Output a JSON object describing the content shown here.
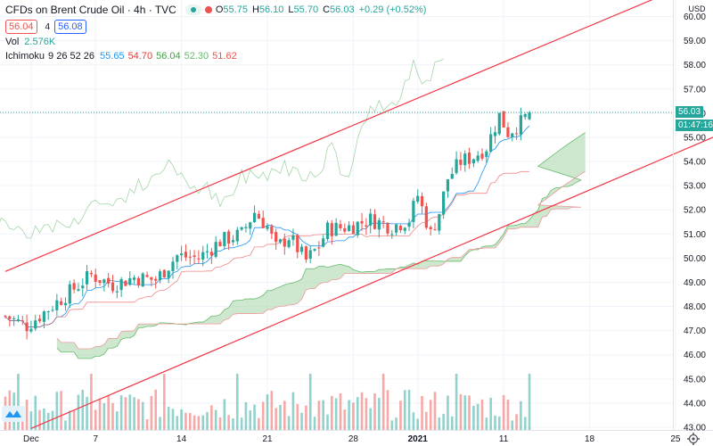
{
  "header": {
    "title": "CFDs on Brent Crude Oil · 4h · TVC",
    "open_label": "O",
    "open": "55.75",
    "high_label": "H",
    "high": "56.10",
    "low_label": "L",
    "low": "55.70",
    "close_label": "C",
    "close": "56.03",
    "change": "+0.29 (+0.52%)",
    "sell": "56.04",
    "spread": "4",
    "buy": "56.08",
    "vol_label": "Vol",
    "vol_value": "2.576K",
    "ichi_label": "Ichimoku",
    "ichi_params": "9 26 52 26",
    "ichi_values": [
      "55.65",
      "54.70",
      "56.04",
      "52.30",
      "51.62"
    ]
  },
  "axis": {
    "currency": "USD",
    "last_price_label": "56.03",
    "countdown": "01:47:16"
  },
  "colors": {
    "up": "#26a69a",
    "down": "#ef5350",
    "channel": "#f23645",
    "conversion": "#2196f3",
    "base": "#e53935",
    "lagging": "#66bb6a",
    "cloud_bull": "#a5d6a7",
    "cloud_bear": "#ef9a9a",
    "ichi_colors": [
      "#2196f3",
      "#e53935",
      "#43a047",
      "#66bb6a",
      "#ef5350"
    ]
  },
  "chart_data": {
    "type": "candlestick",
    "title": "CFDs on Brent Crude Oil · 4h · TVC",
    "ylabel": "USD",
    "ylim": [
      42.9,
      60.4
    ],
    "y_ticks": [
      "43.00",
      "44.00",
      "45.00",
      "46.00",
      "47.00",
      "48.00",
      "49.00",
      "50.00",
      "51.00",
      "52.00",
      "53.00",
      "54.00",
      "55.00",
      "56.00",
      "57.00",
      "58.00",
      "59.00",
      "60.00"
    ],
    "x_ticks": [
      {
        "label": "Dec",
        "bar": 6
      },
      {
        "label": "7",
        "bar": 21
      },
      {
        "label": "14",
        "bar": 41
      },
      {
        "label": "21",
        "bar": 61
      },
      {
        "label": "28",
        "bar": 81
      },
      {
        "label": "2021",
        "bar": 96
      },
      {
        "label": "11",
        "bar": 116
      },
      {
        "label": "18",
        "bar": 136
      },
      {
        "label": "25",
        "bar": 156
      }
    ],
    "bars_total": 170,
    "close_anchors": [
      [
        0,
        47.6
      ],
      [
        5,
        47.2
      ],
      [
        10,
        47.9
      ],
      [
        15,
        48.6
      ],
      [
        20,
        49.3
      ],
      [
        25,
        48.9
      ],
      [
        30,
        49.2
      ],
      [
        35,
        49.1
      ],
      [
        40,
        50.1
      ],
      [
        45,
        50.0
      ],
      [
        50,
        50.7
      ],
      [
        55,
        51.0
      ],
      [
        58,
        51.9
      ],
      [
        61,
        51.3
      ],
      [
        63,
        50.4
      ],
      [
        66,
        50.9
      ],
      [
        70,
        49.9
      ],
      [
        73,
        50.5
      ],
      [
        75,
        51.2
      ],
      [
        80,
        51.3
      ],
      [
        85,
        51.6
      ],
      [
        90,
        51.3
      ],
      [
        94,
        51.6
      ],
      [
        96,
        52.6
      ],
      [
        99,
        51.0
      ],
      [
        101,
        51.9
      ],
      [
        103,
        53.3
      ],
      [
        106,
        54.0
      ],
      [
        109,
        54.2
      ],
      [
        112,
        54.6
      ],
      [
        115,
        55.9
      ],
      [
        117,
        55.2
      ],
      [
        120,
        55.6
      ],
      [
        122,
        56.03
      ]
    ],
    "volume_ylim": [
      0,
      1.0
    ],
    "volume_note": "relative",
    "channel": [
      {
        "name": "upper",
        "from": {
          "bar": 0,
          "price": 49.45
        },
        "to": {
          "bar": 160,
          "price": 61.4
        }
      },
      {
        "name": "lower",
        "from": {
          "bar": 6,
          "price": 42.95
        },
        "to": {
          "bar": 170,
          "price": 55.4
        }
      }
    ],
    "cloud_projection": [
      [
        124,
        53.8
      ],
      [
        130,
        54.6
      ],
      [
        135,
        55.2
      ]
    ]
  }
}
